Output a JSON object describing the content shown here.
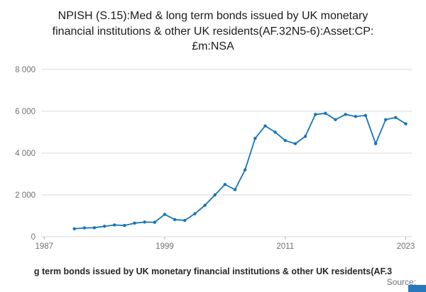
{
  "title": {
    "text": "NPISH (S.15):Med & long term bonds issued by UK monetary financial institutions & other UK residents(AF.32N5-6):Asset:CP:£m:NSA"
  },
  "footer": {
    "caption": "g term bonds issued by UK monetary financial institutions & other UK residents(AF.3",
    "source_label": "Source:"
  },
  "colors": {
    "line": "#1575b5",
    "grid": "#d9d9d9",
    "tick": "#b0b0b0",
    "tick_label": "#707070",
    "logo": "#2878bd"
  },
  "chart_data": {
    "type": "line",
    "title": "NPISH (S.15):Med & long term bonds issued by UK monetary financial institutions & other UK residents(AF.32N5-6):Asset:CP:£m:NSA",
    "xlabel": "",
    "ylabel": "",
    "x": [
      1990,
      1991,
      1992,
      1993,
      1994,
      1995,
      1996,
      1997,
      1998,
      1999,
      2000,
      2001,
      2002,
      2003,
      2004,
      2005,
      2006,
      2007,
      2008,
      2009,
      2010,
      2011,
      2012,
      2013,
      2014,
      2015,
      2016,
      2017,
      2018,
      2019,
      2020,
      2021,
      2022,
      2023
    ],
    "values": [
      380,
      420,
      430,
      500,
      560,
      540,
      650,
      700,
      690,
      1070,
      820,
      780,
      1100,
      1500,
      2000,
      2500,
      2250,
      3200,
      4700,
      5300,
      5000,
      4600,
      4450,
      4800,
      5850,
      5900,
      5600,
      5850,
      5750,
      5800,
      4450,
      5600,
      5700,
      5400
    ],
    "x_ticks": [
      1987,
      1999,
      2011,
      2023
    ],
    "y_ticks": [
      0,
      2000,
      4000,
      6000,
      8000
    ],
    "y_tick_labels": [
      "0",
      "2 000",
      "4 000",
      "6 000",
      "8 000"
    ],
    "xlim": [
      1986.7,
      2023.6
    ],
    "ylim": [
      0,
      8000
    ],
    "grid": true,
    "legend_position": "none",
    "markers": true
  }
}
